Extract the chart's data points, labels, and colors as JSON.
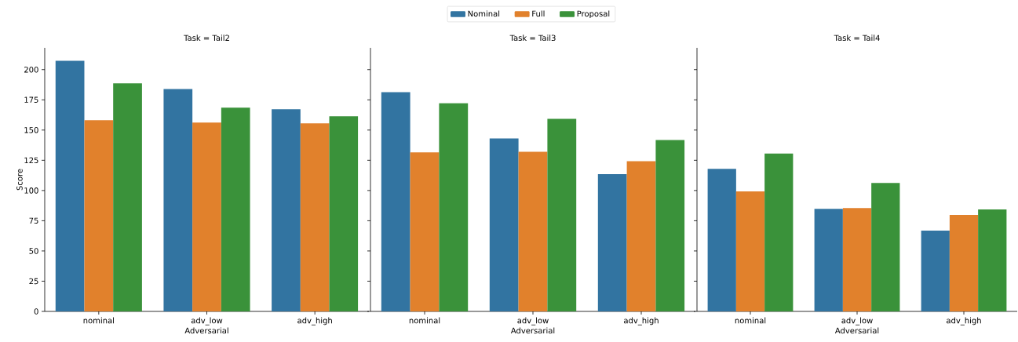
{
  "chart_data": [
    {
      "type": "bar",
      "title": "Task = Tail2",
      "xlabel": "Adversarial",
      "ylabel": "Score",
      "categories": [
        "nominal",
        "adv_low",
        "adv_high"
      ],
      "ylim": [
        0,
        218
      ],
      "yticks": [
        0,
        25,
        50,
        75,
        100,
        125,
        150,
        175,
        200
      ],
      "legend": "top",
      "grid": false,
      "series": [
        {
          "name": "Nominal",
          "color": "#3274a1",
          "values": [
            207.3,
            184.0,
            167.2
          ]
        },
        {
          "name": "Full",
          "color": "#e1812c",
          "values": [
            158.2,
            156.2,
            155.6
          ]
        },
        {
          "name": "Proposal",
          "color": "#3a923a",
          "values": [
            188.6,
            168.5,
            161.4
          ]
        }
      ]
    },
    {
      "type": "bar",
      "title": "Task = Tail3",
      "xlabel": "Adversarial",
      "categories": [
        "nominal",
        "adv_low",
        "adv_high"
      ],
      "ylim": [
        0,
        218
      ],
      "yticks": [
        0,
        25,
        50,
        75,
        100,
        125,
        150,
        175,
        200
      ],
      "tick_labels": "x",
      "grid": false,
      "series": [
        {
          "color": "#3274a1",
          "values": [
            181.3,
            143.1,
            113.6
          ]
        },
        {
          "color": "#e1812c",
          "values": [
            131.5,
            132.1,
            124.2
          ]
        },
        {
          "color": "#3a923a",
          "values": [
            172.2,
            159.3,
            141.8
          ]
        }
      ]
    },
    {
      "type": "bar",
      "title": "Task = Tail4",
      "xlabel": "Adversarial",
      "categories": [
        "nominal",
        "adv_low",
        "adv_high"
      ],
      "ylim": [
        0,
        218
      ],
      "yticks": [
        0,
        25,
        50,
        75,
        100,
        125,
        150,
        175,
        200
      ],
      "tick_labels": "x",
      "grid": false,
      "series": [
        {
          "color": "#3274a1",
          "values": [
            117.9,
            84.9,
            66.8
          ]
        },
        {
          "color": "#e1812c",
          "values": [
            99.2,
            85.5,
            79.8
          ]
        },
        {
          "color": "#3a923a",
          "values": [
            130.8,
            106.3,
            84.3
          ]
        }
      ]
    }
  ]
}
